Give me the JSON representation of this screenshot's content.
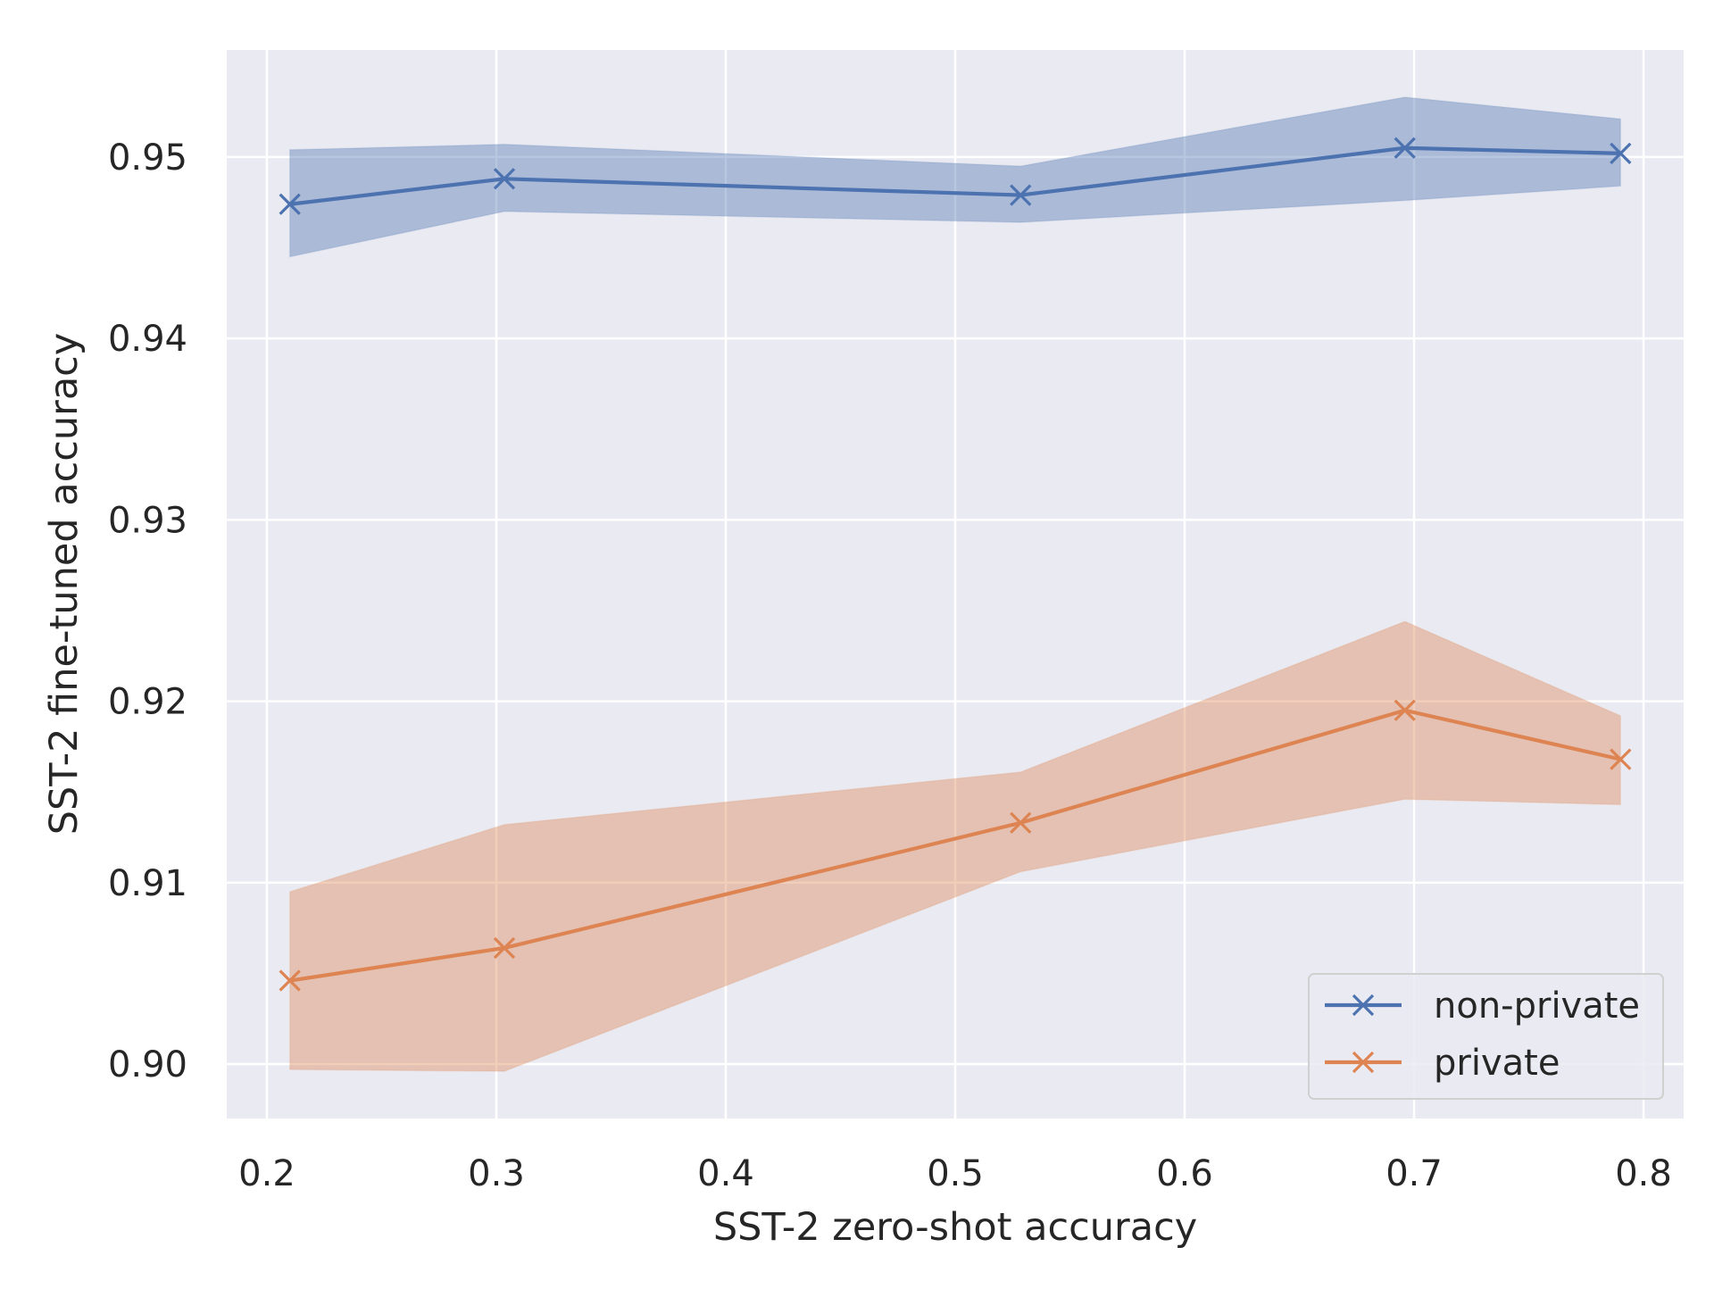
{
  "chart_data": {
    "type": "line",
    "title": "",
    "xlabel": "SST-2 zero-shot accuracy",
    "ylabel": "SST-2 fine-tuned accuracy",
    "xlim": [
      0.1825,
      0.8175
    ],
    "ylim": [
      0.897,
      0.9559
    ],
    "x_ticks": [
      0.2,
      0.3,
      0.4,
      0.5,
      0.6,
      0.7,
      0.8
    ],
    "x_tick_labels": [
      "0.2",
      "0.3",
      "0.4",
      "0.5",
      "0.6",
      "0.7",
      "0.8"
    ],
    "y_ticks": [
      0.9,
      0.91,
      0.92,
      0.93,
      0.94,
      0.95
    ],
    "y_tick_labels": [
      "0.90",
      "0.91",
      "0.92",
      "0.93",
      "0.94",
      "0.95"
    ],
    "grid": true,
    "legend_position": "lower-right",
    "background_color": "#eaeaf2",
    "grid_color": "#ffffff",
    "series": [
      {
        "name": "non-private",
        "color": "#4c72b0",
        "marker": "x",
        "x": [
          0.21,
          0.3035,
          0.5285,
          0.696,
          0.79
        ],
        "y": [
          0.9474,
          0.9488,
          0.9479,
          0.9505,
          0.9502
        ],
        "band_lower": [
          0.9445,
          0.947,
          0.9464,
          0.9476,
          0.9484
        ],
        "band_upper": [
          0.9504,
          0.9507,
          0.9495,
          0.9533,
          0.9521
        ]
      },
      {
        "name": "private",
        "color": "#dd8452",
        "marker": "x",
        "x": [
          0.21,
          0.3035,
          0.5285,
          0.696,
          0.79
        ],
        "y": [
          0.9046,
          0.9064,
          0.9133,
          0.9195,
          0.9168
        ],
        "band_lower": [
          0.8997,
          0.8996,
          0.9106,
          0.9146,
          0.9143
        ],
        "band_upper": [
          0.9095,
          0.9132,
          0.9161,
          0.9244,
          0.9192
        ]
      }
    ]
  }
}
